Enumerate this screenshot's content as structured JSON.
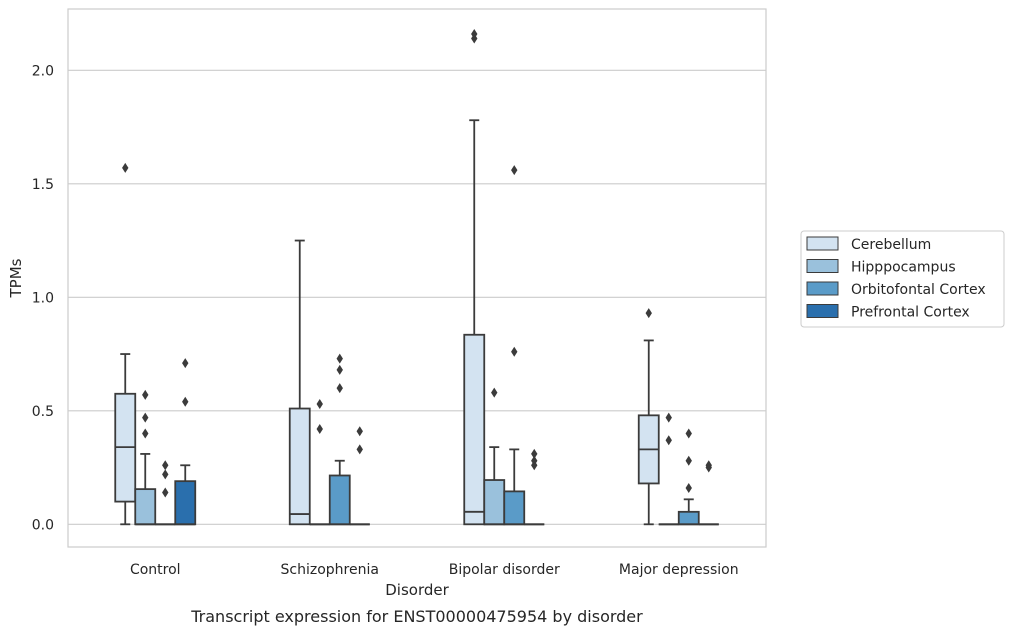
{
  "chart_data": {
    "type": "box",
    "caption": "Transcript expression for ENST00000475954 by disorder",
    "xlabel": "Disorder",
    "ylabel": "TPMs",
    "ylim": [
      -0.1,
      2.27
    ],
    "yticks": [
      0.0,
      0.5,
      1.0,
      1.5,
      2.0
    ],
    "ytick_labels": [
      "0.0",
      "0.5",
      "1.0",
      "1.5",
      "2.0"
    ],
    "grid": "horizontal",
    "legend_position": "right",
    "categories": [
      "Control",
      "Schizophrenia",
      "Bipolar disorder",
      "Major depression"
    ],
    "series": [
      {
        "name": "Cerebellum",
        "color": "#d3e3f1",
        "boxes": [
          {
            "q1": 0.1,
            "median": 0.34,
            "q3": 0.575,
            "whisker_low": 0.0,
            "whisker_high": 0.75,
            "outliers": [
              1.57
            ]
          },
          {
            "q1": 0.0,
            "median": 0.045,
            "q3": 0.51,
            "whisker_low": 0.0,
            "whisker_high": 1.25,
            "outliers": []
          },
          {
            "q1": 0.0,
            "median": 0.055,
            "q3": 0.835,
            "whisker_low": 0.0,
            "whisker_high": 1.78,
            "outliers": [
              2.14,
              2.16
            ]
          },
          {
            "q1": 0.18,
            "median": 0.33,
            "q3": 0.48,
            "whisker_low": 0.0,
            "whisker_high": 0.81,
            "outliers": [
              0.93
            ]
          }
        ]
      },
      {
        "name": "Hipppocampus",
        "color": "#9ac1dc",
        "boxes": [
          {
            "q1": 0.0,
            "median": 0.0,
            "q3": 0.155,
            "whisker_low": 0.0,
            "whisker_high": 0.31,
            "outliers": [
              0.4,
              0.47,
              0.57
            ]
          },
          {
            "q1": 0.0,
            "median": 0.0,
            "q3": 0.0,
            "whisker_low": 0.0,
            "whisker_high": 0.0,
            "outliers": [
              0.42,
              0.53
            ]
          },
          {
            "q1": 0.0,
            "median": 0.0,
            "q3": 0.195,
            "whisker_low": 0.0,
            "whisker_high": 0.34,
            "outliers": [
              0.58
            ]
          },
          {
            "q1": 0.0,
            "median": 0.0,
            "q3": 0.0,
            "whisker_low": 0.0,
            "whisker_high": 0.0,
            "outliers": [
              0.37,
              0.47
            ]
          }
        ]
      },
      {
        "name": "Orbitofontal Cortex",
        "color": "#5a9bc8",
        "boxes": [
          {
            "q1": 0.0,
            "median": 0.0,
            "q3": 0.0,
            "whisker_low": 0.0,
            "whisker_high": 0.0,
            "outliers": [
              0.14,
              0.22,
              0.26
            ]
          },
          {
            "q1": 0.0,
            "median": 0.0,
            "q3": 0.215,
            "whisker_low": 0.0,
            "whisker_high": 0.28,
            "outliers": [
              0.6,
              0.68,
              0.73
            ]
          },
          {
            "q1": 0.0,
            "median": 0.0,
            "q3": 0.145,
            "whisker_low": 0.0,
            "whisker_high": 0.33,
            "outliers": [
              0.76,
              1.56
            ]
          },
          {
            "q1": 0.0,
            "median": 0.0,
            "q3": 0.055,
            "whisker_low": 0.0,
            "whisker_high": 0.11,
            "outliers": [
              0.16,
              0.28,
              0.4
            ]
          }
        ]
      },
      {
        "name": "Prefrontal Cortex",
        "color": "#2a6fad",
        "boxes": [
          {
            "q1": 0.0,
            "median": 0.0,
            "q3": 0.19,
            "whisker_low": 0.0,
            "whisker_high": 0.26,
            "outliers": [
              0.54,
              0.71
            ]
          },
          {
            "q1": 0.0,
            "median": 0.0,
            "q3": 0.0,
            "whisker_low": 0.0,
            "whisker_high": 0.0,
            "outliers": [
              0.33,
              0.41
            ]
          },
          {
            "q1": 0.0,
            "median": 0.0,
            "q3": 0.0,
            "whisker_low": 0.0,
            "whisker_high": 0.0,
            "outliers": [
              0.26,
              0.28,
              0.31
            ]
          },
          {
            "q1": 0.0,
            "median": 0.0,
            "q3": 0.0,
            "whisker_low": 0.0,
            "whisker_high": 0.0,
            "outliers": [
              0.25,
              0.26
            ]
          }
        ]
      }
    ],
    "styling": {
      "edge_color": "#3b3b3b",
      "grid_color": "#cccccc",
      "frame_color": "#cccccc"
    }
  }
}
